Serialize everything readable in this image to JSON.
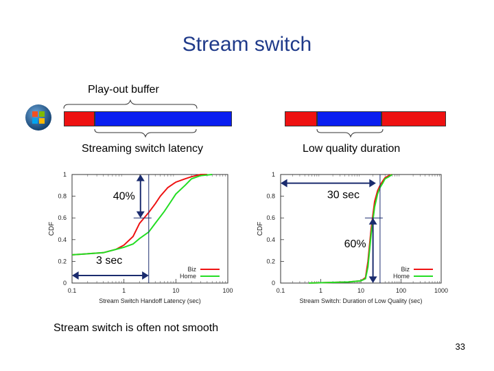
{
  "slide": {
    "title": "Stream switch",
    "playout_label": "Play-out buffer",
    "left_heading": "Streaming switch latency",
    "right_heading": "Low quality duration",
    "footer_text": "Stream switch is often not smooth",
    "page_number": "33"
  },
  "colors": {
    "red": "#ee1111",
    "blue": "#0a1ef0",
    "title": "#1f3a8a"
  },
  "buffer_bars": {
    "left_segments": [
      {
        "name": "red",
        "color": "#ee1111",
        "fraction": 0.18
      },
      {
        "name": "blue",
        "color": "#0a1ef0",
        "fraction": 0.82
      }
    ],
    "right_segments": [
      {
        "name": "red",
        "color": "#ee1111",
        "fraction": 0.2
      },
      {
        "name": "blue",
        "color": "#0a1ef0",
        "fraction": 0.4
      },
      {
        "name": "red",
        "color": "#ee1111",
        "fraction": 0.4
      }
    ]
  },
  "chart_data": [
    {
      "type": "line",
      "xscale": "log",
      "xlabel": "Stream Switch Handoff Latency (sec)",
      "ylabel": "CDF",
      "xlim": [
        0.1,
        100
      ],
      "ylim": [
        0,
        1
      ],
      "xticks": [
        0.1,
        1,
        10,
        100
      ],
      "xtick_labels": [
        "0.1",
        "1",
        "10",
        "100"
      ],
      "yticks": [
        0,
        0.2,
        0.4,
        0.6,
        0.8,
        1
      ],
      "ytick_labels": [
        "0",
        "0.2",
        "0.4",
        "0.6",
        "0.8",
        "1"
      ],
      "legend": {
        "position": "bottom-right",
        "entries": [
          "Biz",
          "Home"
        ]
      },
      "series": [
        {
          "name": "Biz",
          "color": "#ee1111",
          "x": [
            0.1,
            0.4,
            0.7,
            1.0,
            1.5,
            2.0,
            3.0,
            4.0,
            5.0,
            7.0,
            10.0,
            15.0,
            20.0,
            30.0,
            40.0
          ],
          "y": [
            0.26,
            0.28,
            0.31,
            0.35,
            0.43,
            0.55,
            0.65,
            0.73,
            0.8,
            0.88,
            0.93,
            0.96,
            0.98,
            1.0,
            1.0
          ]
        },
        {
          "name": "Home",
          "color": "#22dd22",
          "x": [
            0.1,
            0.4,
            0.7,
            1.0,
            1.5,
            2.0,
            3.0,
            4.0,
            6.0,
            8.0,
            10.0,
            15.0,
            20.0,
            30.0,
            50.0
          ],
          "y": [
            0.26,
            0.28,
            0.31,
            0.33,
            0.36,
            0.41,
            0.47,
            0.55,
            0.66,
            0.75,
            0.82,
            0.9,
            0.96,
            0.99,
            1.0
          ]
        }
      ],
      "reference": {
        "x": 3,
        "y": 0.6
      },
      "annotations": [
        {
          "text": "40%",
          "kind": "vertical-arrow",
          "from_y": 0.6,
          "to_y": 1.0,
          "at_x": 3
        },
        {
          "text": "3 sec",
          "kind": "horizontal-arrow",
          "from_x": 0.1,
          "to_x": 3,
          "at_y": 0.07
        }
      ]
    },
    {
      "type": "line",
      "xscale": "log",
      "xlabel": "Stream Switch: Duration of Low Quality (sec)",
      "ylabel": "CDF",
      "xlim": [
        0.1,
        1000
      ],
      "ylim": [
        0,
        1
      ],
      "xticks": [
        0.1,
        1,
        10,
        100,
        1000
      ],
      "xtick_labels": [
        "0.1",
        "1",
        "10",
        "100",
        "1000"
      ],
      "yticks": [
        0,
        0.2,
        0.4,
        0.6,
        0.8,
        1
      ],
      "ytick_labels": [
        "0",
        "0.2",
        "0.4",
        "0.6",
        "0.8",
        "1"
      ],
      "legend": {
        "position": "bottom-right",
        "entries": [
          "Biz",
          "Home"
        ]
      },
      "series": [
        {
          "name": "Biz",
          "color": "#ee1111",
          "x": [
            0.5,
            5.0,
            10.0,
            13.0,
            15.0,
            18.0,
            22.0,
            26.0,
            30.0,
            35.0,
            40.0,
            50.0,
            60.0
          ],
          "y": [
            0.0,
            0.01,
            0.02,
            0.05,
            0.2,
            0.5,
            0.75,
            0.85,
            0.9,
            0.94,
            0.97,
            0.99,
            1.0
          ]
        },
        {
          "name": "Home",
          "color": "#22dd22",
          "x": [
            0.5,
            5.0,
            10.0,
            13.0,
            15.0,
            18.0,
            22.0,
            26.0,
            30.0,
            35.0,
            40.0,
            50.0,
            60.0
          ],
          "y": [
            0.0,
            0.01,
            0.02,
            0.04,
            0.15,
            0.45,
            0.7,
            0.82,
            0.88,
            0.92,
            0.96,
            0.98,
            1.0
          ]
        }
      ],
      "reference": {
        "x": 30,
        "y": 0.6
      },
      "annotations": [
        {
          "text": "30 sec",
          "kind": "horizontal-arrow",
          "from_x": 0.1,
          "to_x": 30,
          "at_y": 0.92
        },
        {
          "text": "60%",
          "kind": "vertical-arrow",
          "from_y": 0.0,
          "to_y": 0.6,
          "at_x": 20
        }
      ]
    }
  ]
}
